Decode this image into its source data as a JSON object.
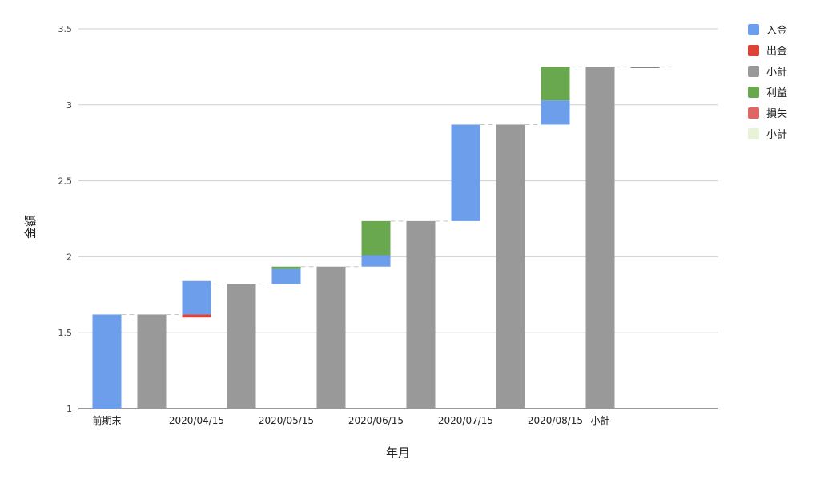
{
  "chart_data": {
    "type": "bar",
    "subtype": "waterfall",
    "title": "",
    "xlabel": "年月",
    "ylabel": "金額",
    "ylim": [
      1,
      3.5
    ],
    "yticks": [
      "1",
      "1.5",
      "2",
      "2.5",
      "3",
      "3.5"
    ],
    "ytick_values": [
      1,
      1.5,
      2,
      2.5,
      3,
      3.5
    ],
    "grid": true,
    "legend_position": "right",
    "legend": [
      {
        "label": "入金",
        "color": "#6d9eeb"
      },
      {
        "label": "出金",
        "color": "#db4437"
      },
      {
        "label": "小計",
        "color": "#999999"
      },
      {
        "label": "利益",
        "color": "#6aa84f"
      },
      {
        "label": "損失",
        "color": "#e06666"
      },
      {
        "label": "小計",
        "color": "#e8f2d8"
      }
    ],
    "categories": [
      "前期末",
      "",
      "2020/04/15",
      "",
      "2020/05/15",
      "",
      "2020/06/15",
      "",
      "2020/07/15",
      "",
      "2020/08/15",
      "小計",
      ""
    ],
    "segments": [
      {
        "index": 0,
        "series": "入金",
        "from": 1,
        "to": 1.62
      },
      {
        "index": 1,
        "series": "小計",
        "from": 1,
        "to": 1.62
      },
      {
        "index": 2,
        "series": "出金",
        "from": 1.62,
        "to": 1.6
      },
      {
        "index": 2,
        "series": "入金",
        "from": 1.62,
        "to": 1.84
      },
      {
        "index": 3,
        "series": "小計",
        "from": 1,
        "to": 1.82
      },
      {
        "index": 4,
        "series": "入金",
        "from": 1.82,
        "to": 1.92
      },
      {
        "index": 4,
        "series": "利益",
        "from": 1.92,
        "to": 1.935
      },
      {
        "index": 5,
        "series": "小計",
        "from": 1,
        "to": 1.935
      },
      {
        "index": 6,
        "series": "入金",
        "from": 1.935,
        "to": 2.01
      },
      {
        "index": 6,
        "series": "利益",
        "from": 2.01,
        "to": 2.235
      },
      {
        "index": 7,
        "series": "小計",
        "from": 1,
        "to": 2.235
      },
      {
        "index": 8,
        "series": "入金",
        "from": 2.235,
        "to": 2.87
      },
      {
        "index": 9,
        "series": "小計",
        "from": 1,
        "to": 2.87
      },
      {
        "index": 10,
        "series": "入金",
        "from": 2.87,
        "to": 3.03
      },
      {
        "index": 10,
        "series": "利益",
        "from": 3.03,
        "to": 3.25
      },
      {
        "index": 11,
        "series": "小計",
        "from": 1,
        "to": 3.25
      },
      {
        "index": 12,
        "series": "小計",
        "from": 3.25,
        "to": 3.248
      }
    ],
    "connectors": [
      {
        "from_index": 0,
        "to_index": 1,
        "value": 1.62
      },
      {
        "from_index": 1,
        "to_index": 2,
        "value": 1.62
      },
      {
        "from_index": 2,
        "to_index": 3,
        "value": 1.82
      },
      {
        "from_index": 3,
        "to_index": 4,
        "value": 1.82
      },
      {
        "from_index": 4,
        "to_index": 5,
        "value": 1.935
      },
      {
        "from_index": 5,
        "to_index": 6,
        "value": 1.935
      },
      {
        "from_index": 6,
        "to_index": 7,
        "value": 2.235
      },
      {
        "from_index": 7,
        "to_index": 8,
        "value": 2.235
      },
      {
        "from_index": 8,
        "to_index": 9,
        "value": 2.87
      },
      {
        "from_index": 9,
        "to_index": 10,
        "value": 2.87
      },
      {
        "from_index": 10,
        "to_index": 11,
        "value": 3.25
      },
      {
        "from_index": 11,
        "to_index": 12,
        "value": 3.25
      },
      {
        "from_index": 12,
        "to_index": 13,
        "value": 3.25
      }
    ]
  }
}
